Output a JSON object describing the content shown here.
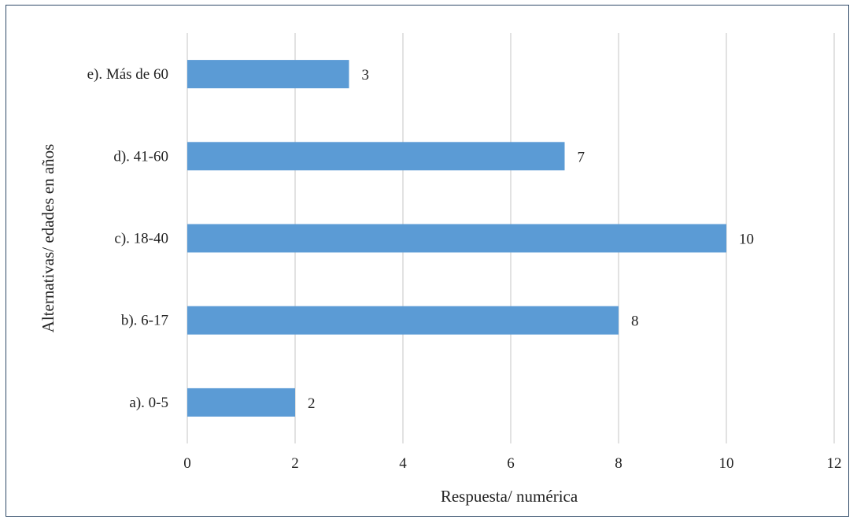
{
  "chart_data": {
    "type": "bar",
    "orientation": "horizontal",
    "categories": [
      "a). 0-5",
      "b). 6-17",
      "c). 18-40",
      "d). 41-60",
      "e). Más de 60"
    ],
    "values": [
      2,
      8,
      10,
      7,
      3
    ],
    "xlabel": "Respuesta/ numérica",
    "ylabel": "Alternativas/ edades en años",
    "xlim": [
      0,
      12
    ],
    "xticks": [
      0,
      2,
      4,
      6,
      8,
      10,
      12
    ],
    "grid": true,
    "legend": "none",
    "bar_color": "#5b9bd5",
    "grid_color": "#d9d9d9",
    "frame_color": "#2f4a68"
  }
}
